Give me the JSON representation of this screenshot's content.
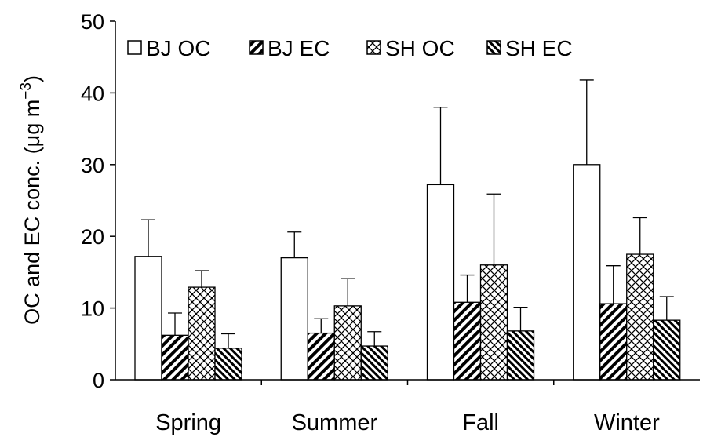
{
  "chart_data": {
    "type": "bar",
    "categories": [
      "Spring",
      "Summer",
      "Fall",
      "Winter"
    ],
    "series": [
      {
        "name": "BJ OC",
        "pattern": "white",
        "values": [
          17.2,
          17.0,
          27.2,
          30.0
        ],
        "errors": [
          5.1,
          3.6,
          10.8,
          11.8
        ]
      },
      {
        "name": "BJ EC",
        "pattern": "diagonal",
        "values": [
          6.2,
          6.5,
          10.8,
          10.6
        ],
        "errors": [
          3.1,
          2.0,
          3.8,
          5.3
        ]
      },
      {
        "name": "SH OC",
        "pattern": "crosshatch",
        "values": [
          12.9,
          10.3,
          16.0,
          17.5
        ],
        "errors": [
          2.3,
          3.8,
          9.9,
          5.1
        ]
      },
      {
        "name": "SH EC",
        "pattern": "dense-diagonal",
        "values": [
          4.4,
          4.7,
          6.8,
          8.3
        ],
        "errors": [
          2.0,
          2.0,
          3.3,
          3.3
        ]
      }
    ],
    "xlabel": "",
    "ylabel": "OC and EC conc. (μg m⁻³)",
    "ylabel_main": "OC and EC conc. (μg m",
    "ylabel_sup": "−3",
    "ylabel_end": ")",
    "ylim": [
      0,
      50
    ],
    "yticks": [
      "0",
      "10",
      "20",
      "30",
      "40",
      "50"
    ],
    "grid": false,
    "legend_position": "top-left"
  }
}
